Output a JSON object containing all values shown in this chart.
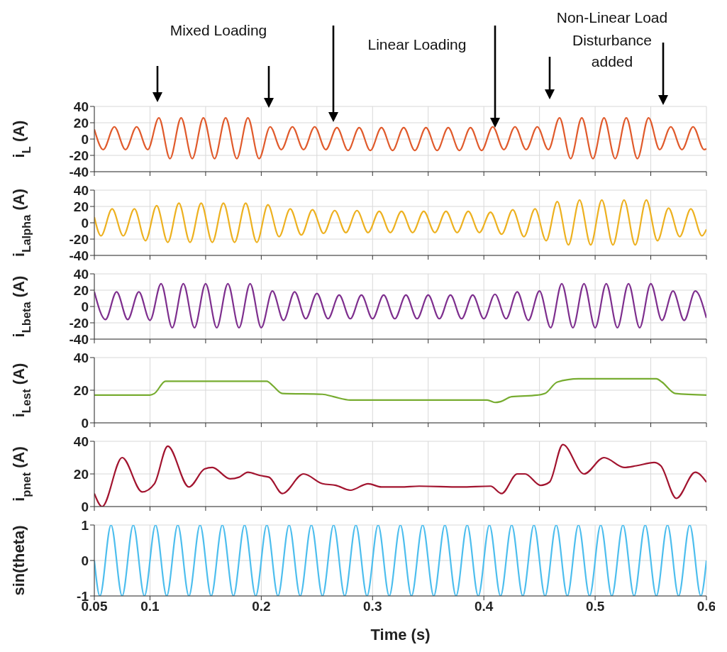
{
  "chart_data": [
    {
      "type": "line",
      "ylabel": "i$_{L}$ (A)",
      "color": "#e05a2b",
      "annotations": [
        "Mixed Loading",
        "Linear Loading",
        "Non-Linear Load",
        "Disturbance added"
      ],
      "x": [
        0.05,
        0.058,
        0.068,
        0.078,
        0.088,
        0.098,
        0.108,
        0.118,
        0.128,
        0.138,
        0.148,
        0.158,
        0.168,
        0.178,
        0.188,
        0.198,
        0.208,
        0.218,
        0.228,
        0.238,
        0.248,
        0.258,
        0.268,
        0.278,
        0.288,
        0.298,
        0.308,
        0.318,
        0.328,
        0.338,
        0.348,
        0.358,
        0.368,
        0.378,
        0.388,
        0.398,
        0.408,
        0.418,
        0.428,
        0.438,
        0.448,
        0.458,
        0.468,
        0.478,
        0.488,
        0.498,
        0.508,
        0.518,
        0.528,
        0.538,
        0.548,
        0.558,
        0.568,
        0.578,
        0.588,
        0.598,
        0.6
      ],
      "values": [
        12,
        -13,
        15,
        -13,
        15,
        -13,
        26,
        -24,
        26,
        -24,
        26,
        -24,
        26,
        -24,
        26,
        -24,
        15,
        -13,
        15,
        -13,
        15,
        -13,
        14,
        -14,
        14,
        -14,
        14,
        -14,
        14,
        -14,
        14,
        -14,
        14,
        -14,
        14,
        -14,
        15,
        -13,
        15,
        -13,
        15,
        -13,
        26,
        -24,
        26,
        -24,
        26,
        -24,
        26,
        -24,
        26,
        -13,
        15,
        -13,
        15,
        -13,
        -12
      ],
      "xlim": [
        0.05,
        0.6
      ],
      "xticks": [
        0.05,
        0.1,
        0.15,
        0.2,
        0.25,
        0.3,
        0.35,
        0.4,
        0.45,
        0.5,
        0.55,
        0.6
      ],
      "ylim": [
        -40,
        40
      ],
      "yticks": [
        -40,
        -20,
        0,
        20,
        40
      ],
      "grid": true,
      "tick_labels": "y"
    },
    {
      "type": "line",
      "ylabel": "i$_{Lalpha}$ (A)",
      "color": "#edb120",
      "x": [
        0.05,
        0.056,
        0.066,
        0.076,
        0.086,
        0.096,
        0.106,
        0.116,
        0.126,
        0.136,
        0.146,
        0.156,
        0.166,
        0.176,
        0.186,
        0.196,
        0.206,
        0.216,
        0.226,
        0.236,
        0.246,
        0.256,
        0.266,
        0.276,
        0.286,
        0.296,
        0.306,
        0.316,
        0.326,
        0.336,
        0.346,
        0.356,
        0.366,
        0.376,
        0.386,
        0.396,
        0.406,
        0.416,
        0.426,
        0.436,
        0.446,
        0.456,
        0.466,
        0.476,
        0.486,
        0.496,
        0.506,
        0.516,
        0.526,
        0.536,
        0.546,
        0.556,
        0.566,
        0.576,
        0.586,
        0.596,
        0.6
      ],
      "values": [
        7,
        -16,
        17,
        -16,
        17,
        -22,
        21,
        -24,
        24,
        -24,
        24,
        -24,
        24,
        -24,
        24,
        -24,
        22,
        -17,
        17,
        -15,
        16,
        -13,
        15,
        -12,
        15,
        -12,
        14,
        -12,
        14,
        -12,
        14,
        -12,
        14,
        -12,
        14,
        -12,
        13,
        -14,
        16,
        -17,
        17,
        -22,
        26,
        -27,
        28,
        -27,
        28,
        -27,
        28,
        -27,
        28,
        -22,
        18,
        -17,
        17,
        -16,
        -8
      ],
      "xlim": [
        0.05,
        0.6
      ],
      "xticks": [
        0.05,
        0.1,
        0.15,
        0.2,
        0.25,
        0.3,
        0.35,
        0.4,
        0.45,
        0.5,
        0.55,
        0.6
      ],
      "ylim": [
        -40,
        40
      ],
      "yticks": [
        -40,
        -20,
        0,
        20,
        40
      ],
      "grid": true,
      "tick_labels": "y"
    },
    {
      "type": "line",
      "ylabel": "i$_{Lbeta}$ (A)",
      "color": "#7e2f8e",
      "x": [
        0.05,
        0.06,
        0.07,
        0.08,
        0.09,
        0.1,
        0.11,
        0.12,
        0.13,
        0.14,
        0.15,
        0.16,
        0.17,
        0.18,
        0.19,
        0.2,
        0.21,
        0.22,
        0.23,
        0.24,
        0.25,
        0.26,
        0.27,
        0.28,
        0.29,
        0.3,
        0.31,
        0.32,
        0.33,
        0.34,
        0.35,
        0.36,
        0.37,
        0.38,
        0.39,
        0.4,
        0.41,
        0.42,
        0.43,
        0.44,
        0.45,
        0.46,
        0.47,
        0.48,
        0.49,
        0.5,
        0.51,
        0.52,
        0.53,
        0.54,
        0.55,
        0.56,
        0.57,
        0.58,
        0.59,
        0.6
      ],
      "values": [
        18,
        -16,
        18,
        -16,
        18,
        -17,
        28,
        -26,
        28,
        -26,
        28,
        -26,
        28,
        -26,
        28,
        -26,
        19,
        -17,
        18,
        -15,
        16,
        -15,
        14,
        -15,
        14,
        -15,
        14,
        -15,
        14,
        -15,
        14,
        -15,
        14,
        -15,
        14,
        -15,
        15,
        -15,
        18,
        -17,
        19,
        -26,
        28,
        -26,
        28,
        -26,
        28,
        -26,
        28,
        -26,
        28,
        -17,
        19,
        -17,
        19,
        -14
      ],
      "xlim": [
        0.05,
        0.6
      ],
      "xticks": [
        0.05,
        0.1,
        0.15,
        0.2,
        0.25,
        0.3,
        0.35,
        0.4,
        0.45,
        0.5,
        0.55,
        0.6
      ],
      "ylim": [
        -40,
        40
      ],
      "yticks": [
        -40,
        -20,
        0,
        20,
        40
      ],
      "grid": true,
      "tick_labels": "y"
    },
    {
      "type": "line",
      "ylabel": "i$_{Lest}$ (A)",
      "color": "#77ac30",
      "x": [
        0.05,
        0.1,
        0.104,
        0.114,
        0.205,
        0.21,
        0.219,
        0.255,
        0.265,
        0.28,
        0.403,
        0.41,
        0.415,
        0.425,
        0.448,
        0.455,
        0.466,
        0.485,
        0.555,
        0.56,
        0.572,
        0.6
      ],
      "values": [
        17,
        17,
        18,
        25.5,
        25.5,
        23,
        18,
        17.5,
        16,
        14,
        14,
        12.5,
        13,
        16,
        17,
        18,
        25,
        27,
        27,
        25,
        18,
        17
      ],
      "xlim": [
        0.05,
        0.6
      ],
      "xticks": [
        0.05,
        0.1,
        0.15,
        0.2,
        0.25,
        0.3,
        0.35,
        0.4,
        0.45,
        0.5,
        0.55,
        0.6
      ],
      "ylim": [
        0,
        40
      ],
      "yticks": [
        0,
        20,
        40
      ],
      "grid": true,
      "tick_labels": "y"
    },
    {
      "type": "line",
      "ylabel": "i$_{pnet}$ (A)",
      "color": "#a2142f",
      "x": [
        0.05,
        0.057,
        0.075,
        0.093,
        0.104,
        0.116,
        0.135,
        0.149,
        0.156,
        0.172,
        0.18,
        0.188,
        0.199,
        0.207,
        0.219,
        0.238,
        0.255,
        0.267,
        0.28,
        0.296,
        0.308,
        0.325,
        0.342,
        0.379,
        0.406,
        0.416,
        0.43,
        0.437,
        0.451,
        0.459,
        0.471,
        0.49,
        0.508,
        0.526,
        0.537,
        0.553,
        0.559,
        0.573,
        0.59,
        0.6
      ],
      "values": [
        8,
        0,
        30,
        9,
        14,
        37,
        12,
        23,
        24,
        17,
        18,
        21,
        19,
        18,
        8,
        20,
        14,
        13,
        10,
        14,
        12,
        12,
        12.5,
        12,
        12.5,
        8,
        20,
        20,
        13,
        15,
        38,
        20,
        30,
        24,
        25,
        27,
        25,
        5,
        21,
        15
      ],
      "xlim": [
        0.05,
        0.6
      ],
      "xticks": [
        0.05,
        0.1,
        0.15,
        0.2,
        0.25,
        0.3,
        0.35,
        0.4,
        0.45,
        0.5,
        0.55,
        0.6
      ],
      "ylim": [
        0,
        40
      ],
      "yticks": [
        0,
        20,
        40
      ],
      "grid": true,
      "tick_labels": "y"
    },
    {
      "type": "line",
      "ylabel": "sin(theta)",
      "xlabel": "Time (s)",
      "color": "#4dbeee",
      "x": [
        0.05,
        0.055,
        0.065,
        0.075,
        0.085,
        0.095,
        0.105,
        0.115,
        0.125,
        0.135,
        0.145,
        0.155,
        0.165,
        0.175,
        0.185,
        0.195,
        0.205,
        0.215,
        0.225,
        0.235,
        0.245,
        0.255,
        0.265,
        0.275,
        0.285,
        0.295,
        0.305,
        0.315,
        0.325,
        0.335,
        0.345,
        0.355,
        0.365,
        0.375,
        0.385,
        0.395,
        0.405,
        0.415,
        0.425,
        0.435,
        0.445,
        0.455,
        0.465,
        0.475,
        0.485,
        0.495,
        0.505,
        0.515,
        0.525,
        0.535,
        0.545,
        0.555,
        0.565,
        0.575,
        0.585,
        0.595,
        0.6
      ],
      "values": [
        0,
        -1,
        1,
        -1,
        1,
        -1,
        1,
        -1,
        1,
        -1,
        1,
        -1,
        1,
        -1,
        1,
        -1,
        1,
        -1,
        1,
        -1,
        1,
        -1,
        1,
        -1,
        1,
        -1,
        1,
        -1,
        1,
        -1,
        1,
        -1,
        1,
        -1,
        1,
        -1,
        1,
        -1,
        1,
        -1,
        1,
        -1,
        1,
        -1,
        1,
        -1,
        1,
        -1,
        1,
        -1,
        1,
        -1,
        1,
        -1,
        1,
        -1,
        0
      ],
      "xlim": [
        0.05,
        0.6
      ],
      "xticks": [
        0.05,
        0.1,
        0.2,
        0.3,
        0.4,
        0.5,
        0.6
      ],
      "ylim": [
        -1,
        1
      ],
      "yticks": [
        -1,
        0,
        1
      ],
      "grid": true
    }
  ]
}
